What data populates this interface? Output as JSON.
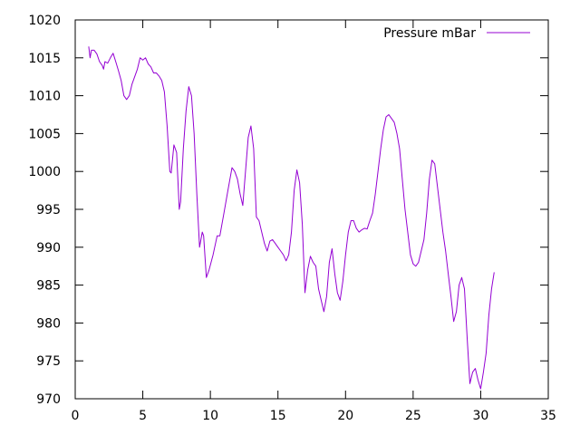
{
  "chart_data": {
    "type": "line",
    "title": "",
    "xlabel": "",
    "ylabel": "",
    "xlim": [
      0,
      35
    ],
    "ylim": [
      970,
      1020
    ],
    "x_ticks": [
      0,
      5,
      10,
      15,
      20,
      25,
      30,
      35
    ],
    "y_ticks": [
      970,
      975,
      980,
      985,
      990,
      995,
      1000,
      1005,
      1010,
      1015,
      1020
    ],
    "grid": false,
    "legend_position": "top-right",
    "series": [
      {
        "name": "Pressure mBar",
        "color": "#9400d3",
        "points": [
          [
            1.0,
            1016.5
          ],
          [
            1.1,
            1015.0
          ],
          [
            1.2,
            1016.0
          ],
          [
            1.4,
            1016.0
          ],
          [
            1.6,
            1015.5
          ],
          [
            1.8,
            1014.5
          ],
          [
            2.0,
            1014.0
          ],
          [
            2.1,
            1013.5
          ],
          [
            2.2,
            1014.5
          ],
          [
            2.4,
            1014.3
          ],
          [
            2.6,
            1015.0
          ],
          [
            2.8,
            1015.6
          ],
          [
            3.0,
            1014.5
          ],
          [
            3.2,
            1013.3
          ],
          [
            3.4,
            1012.0
          ],
          [
            3.6,
            1010.0
          ],
          [
            3.8,
            1009.5
          ],
          [
            4.0,
            1010.0
          ],
          [
            4.2,
            1011.5
          ],
          [
            4.4,
            1012.5
          ],
          [
            4.6,
            1013.5
          ],
          [
            4.8,
            1015.0
          ],
          [
            5.0,
            1014.7
          ],
          [
            5.2,
            1015.0
          ],
          [
            5.4,
            1014.2
          ],
          [
            5.6,
            1013.8
          ],
          [
            5.8,
            1013.0
          ],
          [
            6.0,
            1013.0
          ],
          [
            6.2,
            1012.6
          ],
          [
            6.4,
            1012.0
          ],
          [
            6.6,
            1010.5
          ],
          [
            6.8,
            1006.0
          ],
          [
            7.0,
            1000.0
          ],
          [
            7.1,
            999.8
          ],
          [
            7.3,
            1003.5
          ],
          [
            7.5,
            1002.5
          ],
          [
            7.7,
            995.0
          ],
          [
            7.8,
            996.0
          ],
          [
            8.0,
            1003.0
          ],
          [
            8.2,
            1008.0
          ],
          [
            8.4,
            1011.2
          ],
          [
            8.6,
            1010.0
          ],
          [
            8.8,
            1005.0
          ],
          [
            9.0,
            997.0
          ],
          [
            9.2,
            990.0
          ],
          [
            9.4,
            992.0
          ],
          [
            9.5,
            991.5
          ],
          [
            9.7,
            986.0
          ],
          [
            9.9,
            987.0
          ],
          [
            10.2,
            989.0
          ],
          [
            10.5,
            991.5
          ],
          [
            10.7,
            991.5
          ],
          [
            11.0,
            994.5
          ],
          [
            11.3,
            997.5
          ],
          [
            11.6,
            1000.5
          ],
          [
            11.8,
            1000.0
          ],
          [
            12.0,
            999.0
          ],
          [
            12.2,
            997.0
          ],
          [
            12.4,
            995.5
          ],
          [
            12.6,
            1000.0
          ],
          [
            12.8,
            1004.5
          ],
          [
            13.0,
            1006.0
          ],
          [
            13.2,
            1003.0
          ],
          [
            13.4,
            994.0
          ],
          [
            13.6,
            993.5
          ],
          [
            13.8,
            992.0
          ],
          [
            14.0,
            990.5
          ],
          [
            14.2,
            989.5
          ],
          [
            14.4,
            990.8
          ],
          [
            14.6,
            991.0
          ],
          [
            14.8,
            990.5
          ],
          [
            15.0,
            990.0
          ],
          [
            15.2,
            989.5
          ],
          [
            15.4,
            989.0
          ],
          [
            15.6,
            988.2
          ],
          [
            15.8,
            989.0
          ],
          [
            16.0,
            992.0
          ],
          [
            16.2,
            997.5
          ],
          [
            16.4,
            1000.2
          ],
          [
            16.6,
            998.5
          ],
          [
            16.8,
            993.0
          ],
          [
            17.0,
            984.0
          ],
          [
            17.2,
            987.0
          ],
          [
            17.4,
            988.8
          ],
          [
            17.6,
            988.0
          ],
          [
            17.8,
            987.5
          ],
          [
            18.0,
            984.5
          ],
          [
            18.2,
            983.0
          ],
          [
            18.4,
            981.5
          ],
          [
            18.6,
            983.5
          ],
          [
            18.8,
            988.0
          ],
          [
            19.0,
            989.8
          ],
          [
            19.2,
            986.5
          ],
          [
            19.4,
            984.0
          ],
          [
            19.6,
            983.0
          ],
          [
            19.8,
            985.5
          ],
          [
            20.0,
            989.0
          ],
          [
            20.2,
            992.0
          ],
          [
            20.4,
            993.5
          ],
          [
            20.6,
            993.5
          ],
          [
            20.8,
            992.5
          ],
          [
            21.0,
            992.0
          ],
          [
            21.2,
            992.3
          ],
          [
            21.4,
            992.5
          ],
          [
            21.6,
            992.4
          ],
          [
            21.8,
            993.5
          ],
          [
            22.0,
            994.5
          ],
          [
            22.2,
            997.0
          ],
          [
            22.4,
            1000.0
          ],
          [
            22.6,
            1003.0
          ],
          [
            22.8,
            1005.5
          ],
          [
            23.0,
            1007.2
          ],
          [
            23.2,
            1007.5
          ],
          [
            23.4,
            1007.0
          ],
          [
            23.6,
            1006.5
          ],
          [
            23.8,
            1005.0
          ],
          [
            24.0,
            1003.0
          ],
          [
            24.2,
            999.0
          ],
          [
            24.4,
            995.0
          ],
          [
            24.6,
            992.0
          ],
          [
            24.8,
            989.0
          ],
          [
            25.0,
            987.8
          ],
          [
            25.2,
            987.5
          ],
          [
            25.4,
            988.0
          ],
          [
            25.6,
            989.5
          ],
          [
            25.8,
            991.0
          ],
          [
            26.0,
            994.5
          ],
          [
            26.2,
            999.0
          ],
          [
            26.4,
            1001.5
          ],
          [
            26.6,
            1001.0
          ],
          [
            26.8,
            998.0
          ],
          [
            27.0,
            995.0
          ],
          [
            27.2,
            992.0
          ],
          [
            27.4,
            989.5
          ],
          [
            27.6,
            986.5
          ],
          [
            27.8,
            983.5
          ],
          [
            28.0,
            980.2
          ],
          [
            28.2,
            981.5
          ],
          [
            28.4,
            985.0
          ],
          [
            28.6,
            986.0
          ],
          [
            28.8,
            984.5
          ],
          [
            29.0,
            978.0
          ],
          [
            29.2,
            972.0
          ],
          [
            29.4,
            973.5
          ],
          [
            29.6,
            974.0
          ],
          [
            29.8,
            972.5
          ],
          [
            30.0,
            971.3
          ],
          [
            30.2,
            973.5
          ],
          [
            30.4,
            976.0
          ],
          [
            30.6,
            981.0
          ],
          [
            30.8,
            984.5
          ],
          [
            31.0,
            986.7
          ]
        ]
      }
    ]
  }
}
